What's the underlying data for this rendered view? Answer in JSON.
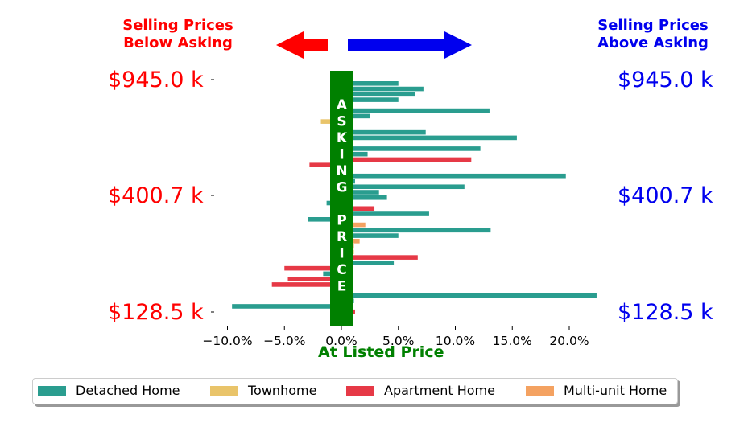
{
  "header": {
    "left_line1": "Selling Prices",
    "left_line2": "Below Asking",
    "right_line1": "Selling Prices",
    "right_line2": "Above Asking"
  },
  "price_labels": {
    "left": [
      "$945.0 k",
      "$400.7 k",
      "$128.5 k"
    ],
    "right": [
      "$945.0 k",
      "$400.7 k",
      "$128.5 k"
    ]
  },
  "colors": {
    "below": "#ff0000",
    "above": "#0000ee",
    "asking": "#008000",
    "detached": "#2a9d8f",
    "townhome": "#e9c46a",
    "apartment": "#e63946",
    "multiunit": "#f4a261"
  },
  "chart_data": {
    "type": "bar",
    "orientation": "horizontal",
    "xlabel": "At Listed Price",
    "x_ticks": [
      "−10.0%",
      "−5.0%",
      "0.0%",
      "5.0%",
      "10.0%",
      "15.0%",
      "20.0%"
    ],
    "x_tick_values": [
      -10,
      -5,
      0,
      5,
      10,
      15,
      20
    ],
    "xlim": [
      -11,
      22.5
    ],
    "asking_band_label": "ASKING PRICE",
    "asking_band_letters": [
      "A",
      "S",
      "K",
      "I",
      "N",
      "G",
      "",
      "P",
      "R",
      "I",
      "C",
      "E"
    ],
    "y_tick_labels": [
      "$945.0 k",
      "$400.7 k",
      "$128.5 k"
    ],
    "legend": [
      {
        "label": "Detached Home",
        "key": "detached"
      },
      {
        "label": "Townhome",
        "key": "townhome"
      },
      {
        "label": "Apartment Home",
        "key": "apartment"
      },
      {
        "label": "Multi-unit Home",
        "key": "multiunit"
      }
    ],
    "bars": [
      {
        "type": "detached",
        "value": 5.0
      },
      {
        "type": "detached",
        "value": 7.2
      },
      {
        "type": "detached",
        "value": 6.5
      },
      {
        "type": "detached",
        "value": 5.0
      },
      {
        "type": "detached",
        "value": 0.5
      },
      {
        "type": "detached",
        "value": 13.0
      },
      {
        "type": "detached",
        "value": 2.5
      },
      {
        "type": "townhome",
        "value": -1.8
      },
      {
        "type": "detached",
        "value": 0.4
      },
      {
        "type": "detached",
        "value": 7.4
      },
      {
        "type": "detached",
        "value": 15.4
      },
      {
        "type": "detached",
        "value": 0.2
      },
      {
        "type": "detached",
        "value": 12.2
      },
      {
        "type": "detached",
        "value": 2.3
      },
      {
        "type": "apartment",
        "value": 11.4
      },
      {
        "type": "apartment",
        "value": -2.8
      },
      {
        "type": "detached",
        "value": 0.1
      },
      {
        "type": "detached",
        "value": 19.7
      },
      {
        "type": "detached",
        "value": 1.2
      },
      {
        "type": "detached",
        "value": 10.8
      },
      {
        "type": "detached",
        "value": 3.3
      },
      {
        "type": "detached",
        "value": 4.0
      },
      {
        "type": "detached",
        "value": -1.3
      },
      {
        "type": "apartment",
        "value": 2.9
      },
      {
        "type": "detached",
        "value": 7.7
      },
      {
        "type": "detached",
        "value": -2.9
      },
      {
        "type": "multiunit",
        "value": 2.1
      },
      {
        "type": "detached",
        "value": 13.1
      },
      {
        "type": "detached",
        "value": 5.0
      },
      {
        "type": "multiunit",
        "value": 1.6
      },
      {
        "type": "multiunit",
        "value": 1.1
      },
      {
        "type": "townhome",
        "value": 1.1
      },
      {
        "type": "apartment",
        "value": 6.7
      },
      {
        "type": "detached",
        "value": 4.6
      },
      {
        "type": "apartment",
        "value": -5.0
      },
      {
        "type": "detached",
        "value": -1.6
      },
      {
        "type": "apartment",
        "value": -4.7
      },
      {
        "type": "apartment",
        "value": -6.1
      },
      {
        "type": "detached",
        "value": 0.2
      },
      {
        "type": "detached",
        "value": 22.4
      },
      {
        "type": "detached",
        "value": 1.1
      },
      {
        "type": "detached",
        "value": -9.6
      },
      {
        "type": "apartment",
        "value": 1.2
      }
    ]
  }
}
